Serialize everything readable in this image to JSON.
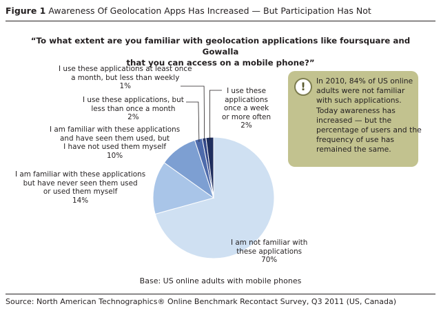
{
  "figure": {
    "number": "Figure 1",
    "title": "Awareness Of Geolocation Apps Has Increased — But Participation Has Not"
  },
  "question_lines": [
    "“To what extent are you familiar with geolocation applications like foursquare and Gowalla",
    "that you can access on a mobile phone?”"
  ],
  "callout": {
    "icon": "exclamation-icon",
    "lines": [
      "In 2010, 84% of US online",
      "adults were not familiar",
      "with such applications.",
      "Today awareness has",
      "increased — but the",
      "percentage of users and the",
      "frequency of use has",
      "remained the same."
    ],
    "background": "#c2c28f"
  },
  "base_note": "Base: US online adults with mobile phones",
  "source": "Source: North American Technographics® Online Benchmark Recontact Survey, Q3 2011 (US, Canada)",
  "chart_data": {
    "type": "pie",
    "title": "“To what extent are you familiar with geolocation applications like foursquare and Gowalla that you can access on a mobile phone?”",
    "slices": [
      {
        "label_lines": [
          "I am not familiar with",
          "these applications"
        ],
        "value": 70,
        "value_label": "70%",
        "color": "#cfe0f2"
      },
      {
        "label_lines": [
          "I am familiar with these applications",
          "but have never seen them used",
          "or used them myself"
        ],
        "value": 14,
        "value_label": "14%",
        "color": "#a9c5e8"
      },
      {
        "label_lines": [
          "I am familiar with these applications",
          "and have seen them used, but",
          "I have not used them myself"
        ],
        "value": 10,
        "value_label": "10%",
        "color": "#7d9fd2"
      },
      {
        "label_lines": [
          "I use these applications, but",
          "less than once a month"
        ],
        "value": 2,
        "value_label": "2%",
        "color": "#4d6aab"
      },
      {
        "label_lines": [
          "I use these applications at least once",
          "a month, but less than weekly"
        ],
        "value": 1,
        "value_label": "1%",
        "color": "#34498a"
      },
      {
        "label_lines": [
          "I use these",
          "applications",
          "once a week",
          "or more often"
        ],
        "value": 2,
        "value_label": "2%",
        "color": "#1f2e5e"
      }
    ]
  }
}
